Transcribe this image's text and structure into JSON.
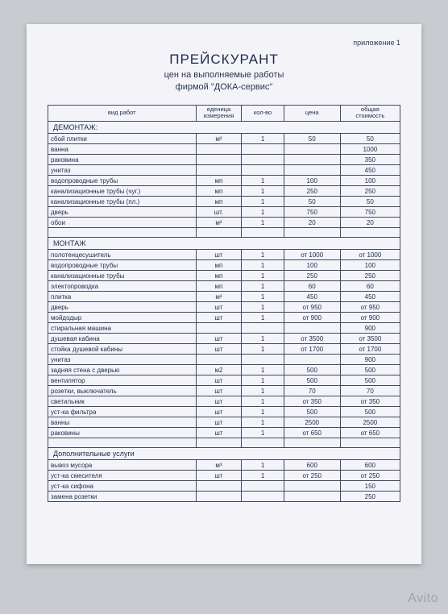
{
  "appendix": "приложение 1",
  "title": "ПРЕЙСКУРАНТ",
  "subtitle1": "цен на выполняемые работы",
  "subtitle2": "фирмой \"ДОКА-сервис\"",
  "watermark": "Avito",
  "columns": {
    "c0": "вид работ",
    "c1_a": "еденица",
    "c1_b": "измерения",
    "c2": "кол-во",
    "c3": "цена",
    "c4_a": "общая",
    "c4_b": "стоимость"
  },
  "col_widths": [
    "42%",
    "13%",
    "12%",
    "16%",
    "17%"
  ],
  "sections": [
    {
      "title": "ДЕМОНТАЖ:",
      "rows": [
        {
          "name": "сбой плитки",
          "unit": "м²",
          "qty": "1",
          "price": "50",
          "total": "50"
        },
        {
          "name": "ванна",
          "unit": "",
          "qty": "",
          "price": "",
          "total": "1000"
        },
        {
          "name": "раковина",
          "unit": "",
          "qty": "",
          "price": "",
          "total": "350"
        },
        {
          "name": "унитаз",
          "unit": "",
          "qty": "",
          "price": "",
          "total": "450"
        },
        {
          "name": "водопроводные трубы",
          "unit": "мп",
          "qty": "1",
          "price": "100",
          "total": "100"
        },
        {
          "name": "канализационные трубы (чуг.)",
          "unit": "мп",
          "qty": "1",
          "price": "250",
          "total": "250"
        },
        {
          "name": "канализационные трубы (пл.)",
          "unit": "мп",
          "qty": "1",
          "price": "50",
          "total": "50"
        },
        {
          "name": "дверь",
          "unit": "шт.",
          "qty": "1",
          "price": "750",
          "total": "750"
        },
        {
          "name": "обои",
          "unit": "м²",
          "qty": "1",
          "price": "20",
          "total": "20"
        }
      ]
    },
    {
      "title": "МОНТАЖ",
      "rows": [
        {
          "name": "полотенцесушитель",
          "unit": "шт",
          "qty": "1",
          "price": "от 1000",
          "total": "от 1000"
        },
        {
          "name": "водопроводные трубы",
          "unit": "мп",
          "qty": "1",
          "price": "100",
          "total": "100"
        },
        {
          "name": "канализационные трубы",
          "unit": "мп",
          "qty": "1",
          "price": "250",
          "total": "250"
        },
        {
          "name": "электопроводка",
          "unit": "мп",
          "qty": "1",
          "price": "60",
          "total": "60"
        },
        {
          "name": "плитка",
          "unit": "м²",
          "qty": "1",
          "price": "450",
          "total": "450"
        },
        {
          "name": "дверь",
          "unit": "шт",
          "qty": "1",
          "price": "от 950",
          "total": "от 950"
        },
        {
          "name": "мойдодыр",
          "unit": "шт",
          "qty": "1",
          "price": "от 900",
          "total": "от 900"
        },
        {
          "name": "стиральная машина",
          "unit": "",
          "qty": "",
          "price": "",
          "total": "900"
        },
        {
          "name": "душевая кабина",
          "unit": "шт",
          "qty": "1",
          "price": "от 3500",
          "total": "от 3500"
        },
        {
          "name": "стойка душевой кабины",
          "unit": "шт",
          "qty": "1",
          "price": "от 1700",
          "total": "от 1700"
        },
        {
          "name": "унитаз",
          "unit": "",
          "qty": "",
          "price": "",
          "total": "900"
        },
        {
          "name": "задняя стена с дверью",
          "unit": "м2",
          "qty": "1",
          "price": "500",
          "total": "500"
        },
        {
          "name": "вентилятор",
          "unit": "шт",
          "qty": "1",
          "price": "500",
          "total": "500"
        },
        {
          "name": "розетки, выключатель",
          "unit": "шт",
          "qty": "1",
          "price": "70",
          "total": "70"
        },
        {
          "name": "светильник",
          "unit": "шт",
          "qty": "1",
          "price": "от 350",
          "total": "от 350"
        },
        {
          "name": "уст-ка фильтра",
          "unit": "шт",
          "qty": "1",
          "price": "500",
          "total": "500"
        },
        {
          "name": "ванны",
          "unit": "шт",
          "qty": "1",
          "price": "2500",
          "total": "2500"
        },
        {
          "name": "раковины",
          "unit": "шт",
          "qty": "1",
          "price": "от 650",
          "total": "от 650"
        }
      ]
    },
    {
      "title": "Дополнительные услуги",
      "rows": [
        {
          "name": "вывоз мусора",
          "unit": "м³",
          "qty": "1",
          "price": "600",
          "total": "600"
        },
        {
          "name": "уст-ка смесителя",
          "unit": "шт",
          "qty": "1",
          "price": "от 250",
          "total": "от 250"
        },
        {
          "name": "уст-ка сифона",
          "unit": "",
          "qty": "",
          "price": "",
          "total": "150"
        },
        {
          "name": "замена розетки",
          "unit": "",
          "qty": "",
          "price": "",
          "total": "250"
        }
      ]
    }
  ]
}
